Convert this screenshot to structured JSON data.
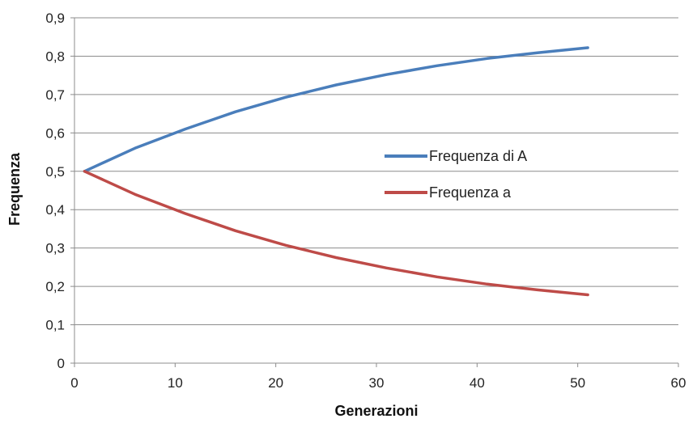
{
  "chart_data": {
    "type": "line",
    "title": "",
    "xlabel": "Generazioni",
    "ylabel": "Frequenza",
    "xlim": [
      0,
      60
    ],
    "ylim": [
      0,
      0.9
    ],
    "x_ticks": [
      0,
      10,
      20,
      30,
      40,
      50,
      60
    ],
    "y_ticks": [
      0,
      0.1,
      0.2,
      0.3,
      0.4,
      0.5,
      0.6,
      0.7,
      0.8,
      0.9
    ],
    "x_tick_labels": [
      "0",
      "10",
      "20",
      "30",
      "40",
      "50",
      "60"
    ],
    "y_tick_labels": [
      "0",
      "0,1",
      "0,2",
      "0,3",
      "0,4",
      "0,5",
      "0,6",
      "0,7",
      "0,8",
      "0,9"
    ],
    "grid": {
      "horizontal": true,
      "vertical": false
    },
    "legend_position": "center-right",
    "x": [
      1,
      6,
      11,
      16,
      21,
      26,
      31,
      36,
      41,
      46,
      51
    ],
    "series": [
      {
        "name": "Frequenza di A",
        "color": "#4a7ebb",
        "values": [
          0.5,
          0.56,
          0.61,
          0.655,
          0.693,
          0.725,
          0.752,
          0.775,
          0.794,
          0.809,
          0.822
        ]
      },
      {
        "name": "Frequenza a",
        "color": "#be4b48",
        "values": [
          0.5,
          0.44,
          0.39,
          0.345,
          0.307,
          0.275,
          0.248,
          0.225,
          0.206,
          0.191,
          0.178
        ]
      }
    ]
  }
}
